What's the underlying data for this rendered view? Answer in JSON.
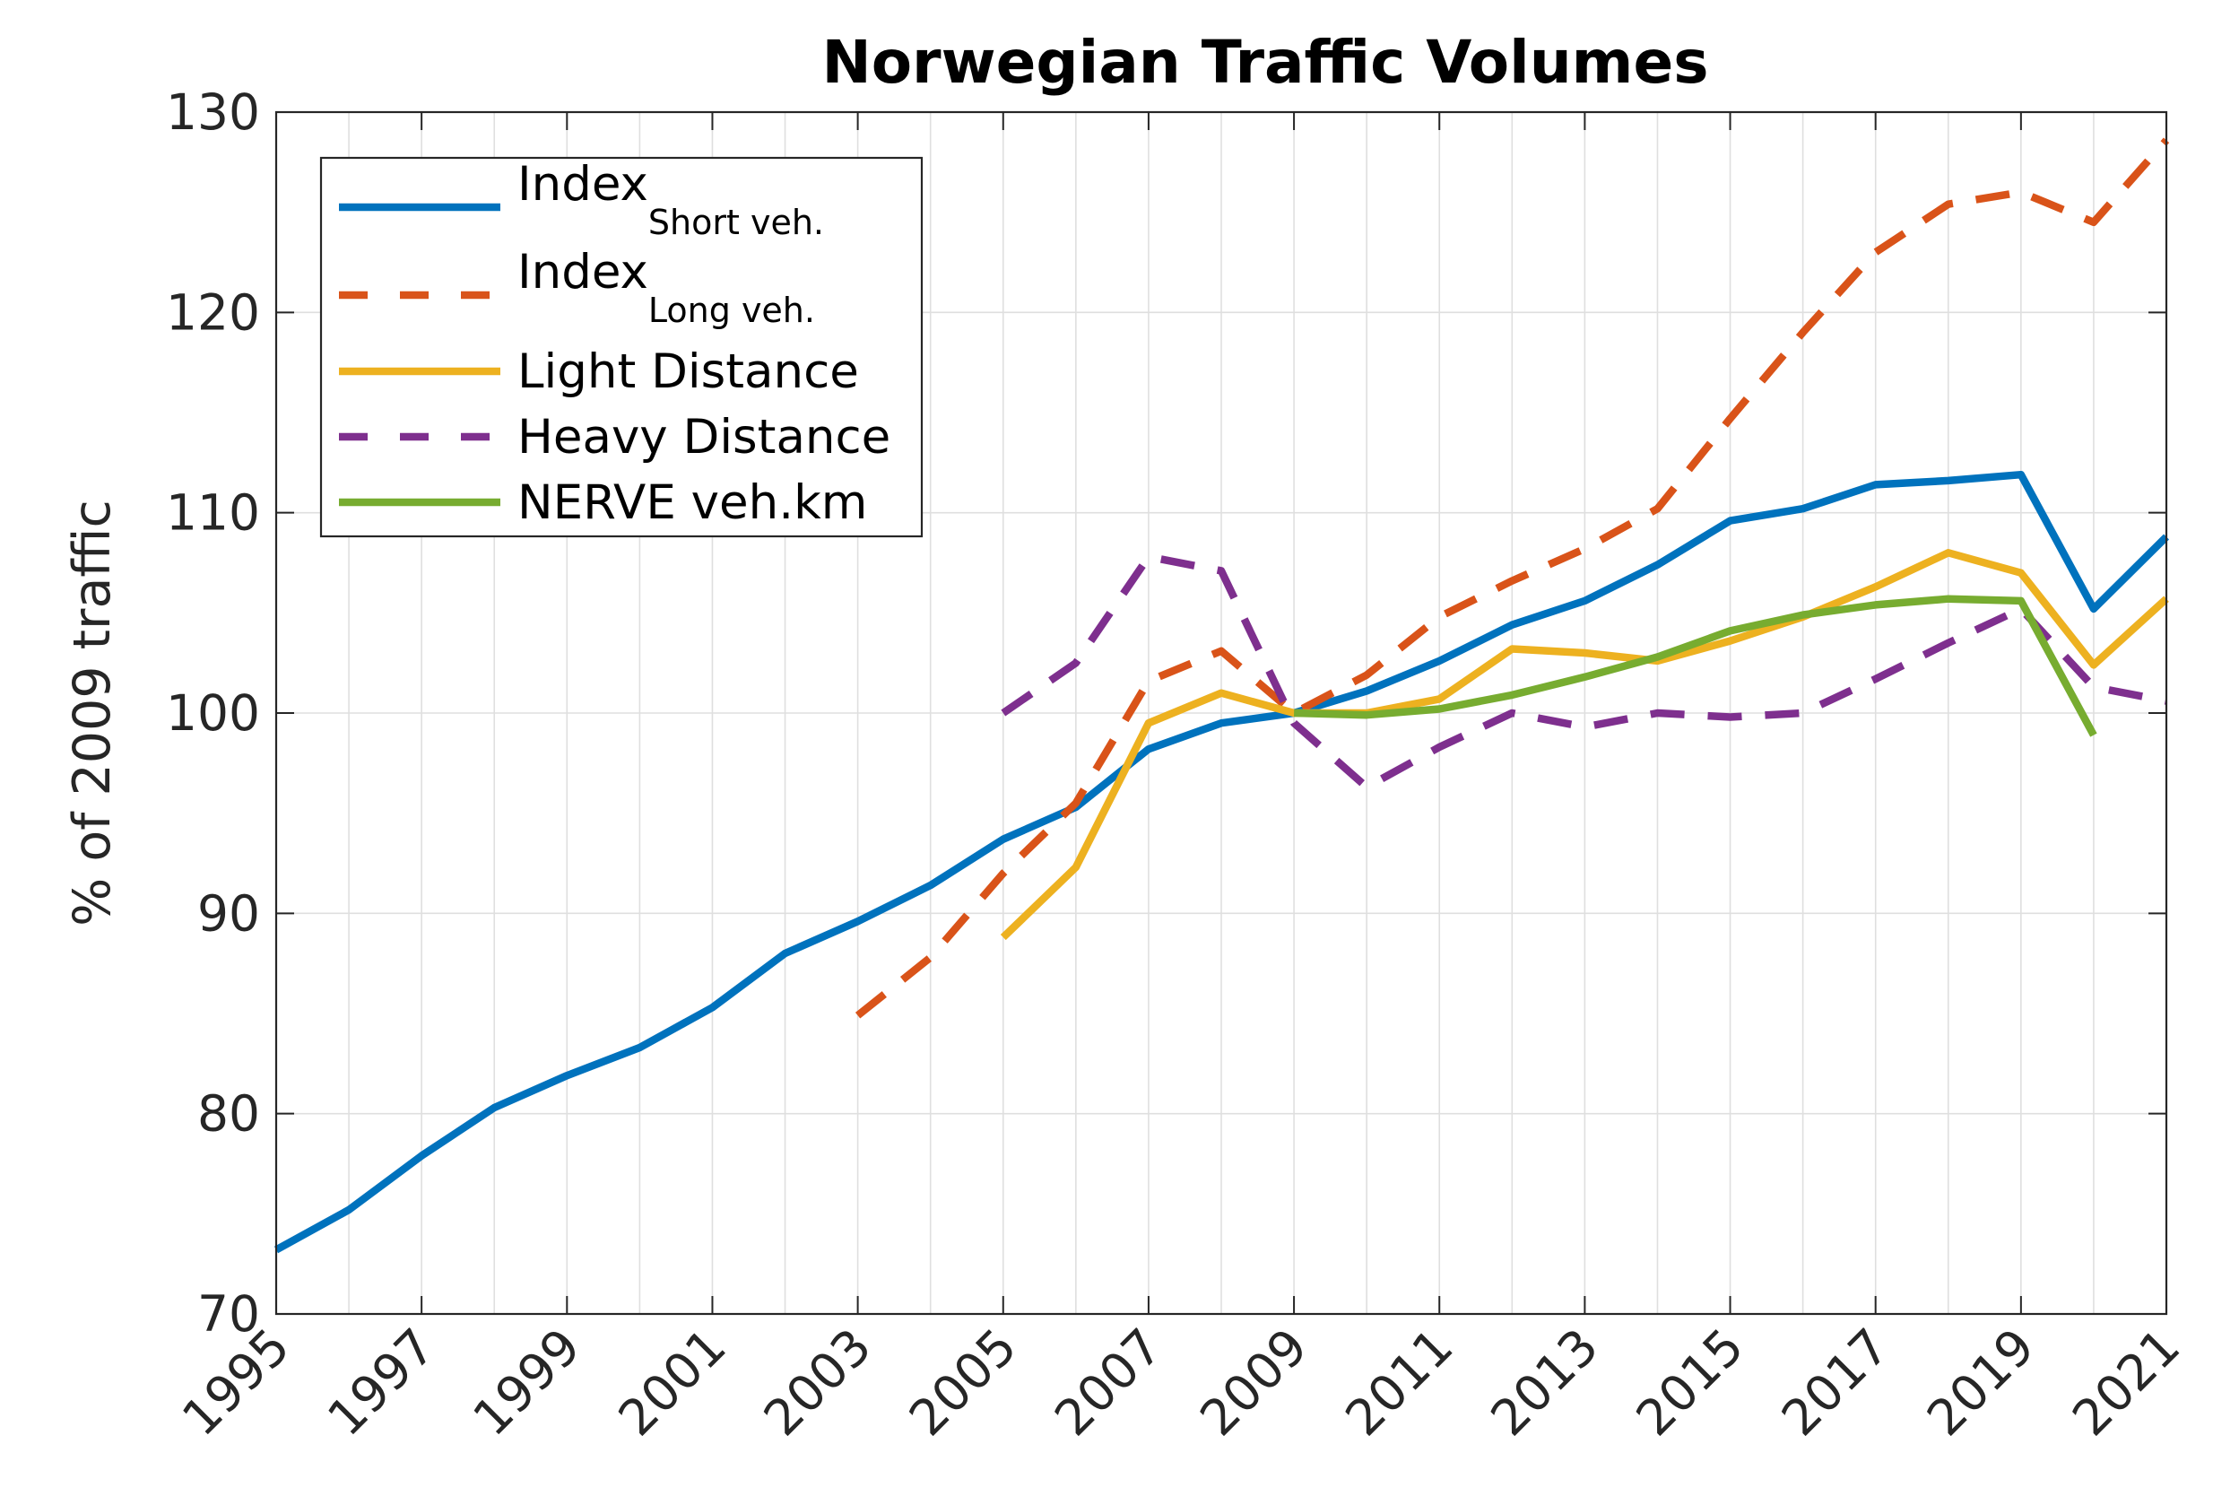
{
  "chart_data": {
    "type": "line",
    "title": "Norwegian Traffic Volumes",
    "xlabel": "",
    "ylabel": "% of 2009 traffic",
    "xlim": [
      1995,
      2021
    ],
    "ylim": [
      70,
      130
    ],
    "xticks": [
      "1995",
      "1997",
      "1999",
      "2001",
      "2003",
      "2005",
      "2007",
      "2009",
      "2011",
      "2013",
      "2015",
      "2017",
      "2019",
      "2021"
    ],
    "yticks": [
      "70",
      "80",
      "90",
      "100",
      "110",
      "120",
      "130"
    ],
    "grid": true,
    "legend_position": "top-left",
    "series": [
      {
        "name": "Index",
        "name_sub": "Short veh.",
        "color": "#0072BD",
        "dash": "solid",
        "x": [
          1995,
          1996,
          1997,
          1998,
          1999,
          2000,
          2001,
          2002,
          2003,
          2004,
          2005,
          2006,
          2007,
          2008,
          2009,
          2010,
          2011,
          2012,
          2013,
          2014,
          2015,
          2016,
          2017,
          2018,
          2019,
          2020,
          2021
        ],
        "y": [
          73.2,
          75.2,
          77.9,
          80.3,
          81.9,
          83.3,
          85.3,
          88.0,
          89.6,
          91.4,
          93.7,
          95.3,
          98.2,
          99.5,
          100,
          101.1,
          102.6,
          104.4,
          105.6,
          107.4,
          109.6,
          110.2,
          111.4,
          111.6,
          111.9,
          105.2,
          108.8
        ]
      },
      {
        "name": "Index",
        "name_sub": "Long veh.",
        "color": "#D95319",
        "dash": "dashed",
        "x": [
          2003,
          2004,
          2005,
          2006,
          2007,
          2008,
          2009,
          2010,
          2011,
          2012,
          2013,
          2014,
          2015,
          2016,
          2017,
          2018,
          2019,
          2020,
          2021
        ],
        "y": [
          84.9,
          87.8,
          92.0,
          95.5,
          101.6,
          103.1,
          100,
          101.9,
          104.8,
          106.6,
          108.2,
          110.2,
          114.7,
          119.0,
          123.0,
          125.4,
          126.0,
          124.5,
          128.6
        ]
      },
      {
        "name": "Light Distance",
        "name_sub": "",
        "color": "#EDB120",
        "dash": "solid",
        "x": [
          2005,
          2006,
          2007,
          2008,
          2009,
          2010,
          2011,
          2012,
          2013,
          2014,
          2015,
          2016,
          2017,
          2018,
          2019,
          2020,
          2021
        ],
        "y": [
          88.8,
          92.3,
          99.5,
          101.0,
          100,
          100.0,
          100.7,
          103.2,
          103.0,
          102.6,
          103.6,
          104.8,
          106.3,
          108.0,
          107.0,
          102.4,
          105.7
        ]
      },
      {
        "name": "Heavy Distance",
        "name_sub": "",
        "color": "#7E2F8E",
        "dash": "dashed",
        "x": [
          2005,
          2006,
          2007,
          2008,
          2009,
          2010,
          2011,
          2012,
          2013,
          2014,
          2015,
          2016,
          2017,
          2018,
          2019,
          2020,
          2021
        ],
        "y": [
          100.0,
          102.5,
          107.8,
          107.1,
          99.5,
          96.3,
          98.3,
          100.0,
          99.3,
          100.0,
          99.8,
          100.0,
          101.7,
          103.5,
          105.2,
          101.3,
          100.6
        ]
      },
      {
        "name": "NERVE veh.km",
        "name_sub": "",
        "color": "#77AC30",
        "dash": "solid",
        "x": [
          2009,
          2010,
          2011,
          2012,
          2013,
          2014,
          2015,
          2016,
          2017,
          2018,
          2019,
          2020
        ],
        "y": [
          100,
          99.9,
          100.2,
          100.9,
          101.8,
          102.8,
          104.1,
          104.9,
          105.4,
          105.7,
          105.6,
          98.9
        ]
      }
    ]
  }
}
